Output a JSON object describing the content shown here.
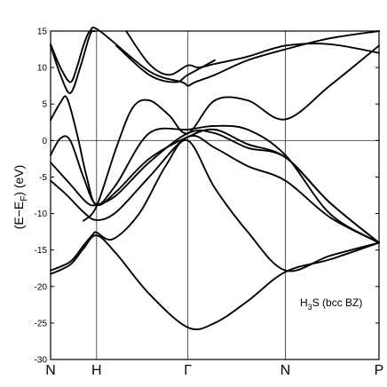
{
  "chart_data": {
    "type": "line",
    "ylabel": "(E−E",
    "ylabel_sub": "F",
    "ylabel_tail": ") (eV)",
    "ylim": [
      -30,
      15
    ],
    "yticks": [
      15,
      10,
      5,
      0,
      -5,
      -10,
      -15,
      -20,
      -25,
      -30
    ],
    "fermi_level": 0,
    "grid": "vertical lines at high-symmetry points, horizontal line at E = 0",
    "kpoints": [
      {
        "label": "N",
        "pos": 0.0
      },
      {
        "label": "H",
        "pos": 0.14
      },
      {
        "label": "Γ",
        "pos": 0.418
      },
      {
        "label": "N",
        "pos": 0.715
      },
      {
        "label": "P",
        "pos": 1.0
      }
    ],
    "annotation": {
      "main": "H",
      "sub": "3",
      "tail": "S (bcc BZ)"
    },
    "series": [
      {
        "points": [
          [
            0,
            -18.3
          ],
          [
            0.06,
            -17.0
          ],
          [
            0.1,
            -14.8
          ],
          [
            0.14,
            -13.0
          ],
          [
            0.2,
            -15.5
          ],
          [
            0.3,
            -21.0
          ],
          [
            0.418,
            -25.6
          ],
          [
            0.5,
            -25.0
          ],
          [
            0.6,
            -22.0
          ],
          [
            0.715,
            -18.0
          ],
          [
            0.85,
            -16.3
          ],
          [
            1.0,
            -14.0
          ]
        ]
      },
      {
        "points": [
          [
            0,
            -17.8
          ],
          [
            0.06,
            -16.6
          ],
          [
            0.1,
            -14.4
          ],
          [
            0.13,
            -12.8
          ],
          [
            0.14,
            -12.6
          ],
          [
            0.19,
            -13.5
          ],
          [
            0.27,
            -10.0
          ],
          [
            0.35,
            -3.5
          ],
          [
            0.418,
            0.0
          ],
          [
            0.5,
            -6.5
          ],
          [
            0.6,
            -12.5
          ],
          [
            0.715,
            -17.8
          ],
          [
            0.85,
            -15.8
          ],
          [
            1.0,
            -14.0
          ]
        ]
      },
      {
        "points": [
          [
            0,
            -5.5
          ],
          [
            0.05,
            -7.5
          ],
          [
            0.1,
            -9.8
          ],
          [
            0.14,
            -10.9
          ],
          [
            0.2,
            -9.8
          ],
          [
            0.3,
            -5.0
          ],
          [
            0.418,
            0.5
          ],
          [
            0.5,
            -1.0
          ],
          [
            0.6,
            -3.5
          ],
          [
            0.715,
            -5.5
          ],
          [
            0.85,
            -10.5
          ],
          [
            1.0,
            -14.0
          ]
        ]
      },
      {
        "points": [
          [
            0,
            -3.0
          ],
          [
            0.06,
            -6.0
          ],
          [
            0.11,
            -8.5
          ],
          [
            0.14,
            -8.8
          ],
          [
            0.2,
            -7.5
          ],
          [
            0.3,
            -3.0
          ],
          [
            0.418,
            1.0
          ],
          [
            0.5,
            1.0
          ],
          [
            0.6,
            -1.0
          ],
          [
            0.715,
            -2.3
          ],
          [
            0.85,
            -8.5
          ],
          [
            1.0,
            -14.0
          ]
        ]
      },
      {
        "points": [
          [
            0,
            -2.0
          ],
          [
            0.03,
            0.3
          ],
          [
            0.06,
            0.0
          ],
          [
            0.1,
            -5.0
          ],
          [
            0.14,
            -8.8
          ],
          [
            0.2,
            -7.0
          ],
          [
            0.3,
            -2.5
          ],
          [
            0.418,
            0.5
          ],
          [
            0.5,
            1.5
          ],
          [
            0.6,
            -0.5
          ],
          [
            0.715,
            -2.3
          ],
          [
            0.85,
            -8.5
          ],
          [
            1.0,
            -14.0
          ]
        ]
      },
      {
        "points": [
          [
            0,
            2.8
          ],
          [
            0.03,
            5.2
          ],
          [
            0.05,
            5.8
          ],
          [
            0.08,
            1.0
          ],
          [
            0.11,
            -5.0
          ],
          [
            0.14,
            -8.8
          ],
          [
            0.2,
            -6.0
          ],
          [
            0.3,
            1.0
          ],
          [
            0.418,
            1.5
          ],
          [
            0.5,
            2.0
          ],
          [
            0.6,
            1.5
          ],
          [
            0.715,
            -2.0
          ],
          [
            0.85,
            -10.0
          ],
          [
            1.0,
            -14.0
          ]
        ]
      },
      {
        "points": [
          [
            0.1,
            -11.0
          ],
          [
            0.14,
            -9.0
          ],
          [
            0.2,
            -1.0
          ],
          [
            0.25,
            4.5
          ],
          [
            0.3,
            5.5
          ],
          [
            0.36,
            3.5
          ],
          [
            0.418,
            1.0
          ],
          [
            0.5,
            5.5
          ],
          [
            0.6,
            5.5
          ],
          [
            0.715,
            2.9
          ],
          [
            0.85,
            7.5
          ],
          [
            1.0,
            13.0
          ]
        ]
      },
      {
        "points": [
          [
            0,
            13.2
          ],
          [
            0.03,
            10.0
          ],
          [
            0.06,
            8.0
          ],
          [
            0.08,
            10.0
          ],
          [
            0.1,
            13.0
          ],
          [
            0.12,
            15.0
          ],
          [
            0.15,
            15.0
          ],
          [
            0.3,
            9.5
          ],
          [
            0.4,
            8.0
          ],
          [
            0.418,
            7.5
          ],
          [
            0.44,
            8.0
          ],
          [
            0.5,
            9.0
          ],
          [
            0.6,
            11.0
          ],
          [
            0.715,
            12.5
          ],
          [
            0.85,
            14.0
          ],
          [
            1.0,
            15.0
          ]
        ]
      },
      {
        "points": [
          [
            0,
            13.0
          ],
          [
            0.03,
            9.0
          ],
          [
            0.06,
            6.5
          ],
          [
            0.09,
            10.0
          ],
          [
            0.12,
            14.5
          ],
          [
            0.135,
            15.0
          ]
        ]
      },
      {
        "points": [
          [
            0.23,
            15.0
          ],
          [
            0.3,
            10.5
          ],
          [
            0.36,
            9.0
          ],
          [
            0.418,
            10.3
          ],
          [
            0.45,
            10.0
          ],
          [
            0.5,
            10.5
          ],
          [
            0.6,
            11.5
          ],
          [
            0.715,
            13.0
          ],
          [
            0.85,
            13.2
          ],
          [
            1.0,
            12.0
          ]
        ]
      },
      {
        "points": [
          [
            0.2,
            13.0
          ],
          [
            0.3,
            9.0
          ],
          [
            0.38,
            8.0
          ],
          [
            0.418,
            9.0
          ],
          [
            0.5,
            11.0
          ]
        ]
      }
    ]
  }
}
